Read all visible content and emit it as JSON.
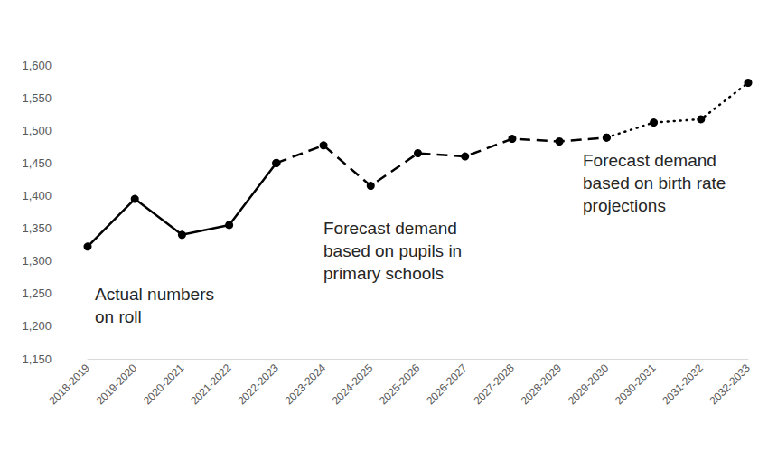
{
  "chart_data": {
    "type": "line",
    "categories": [
      "2018-2019",
      "2019-2020",
      "2020-2021",
      "2021-2022",
      "2022-2023",
      "2023-2024",
      "2024-2025",
      "2025-2026",
      "2026-2027",
      "2027-2028",
      "2028-2029",
      "2029-2030",
      "2030-2031",
      "2031-2032",
      "2032-2033"
    ],
    "series": [
      {
        "name": "Actual numbers\non roll",
        "color": "#000000",
        "line_style": "solid",
        "marker": "circle",
        "values": [
          1322,
          1395,
          1340,
          1355,
          1450,
          null,
          null,
          null,
          null,
          null,
          null,
          null,
          null,
          null,
          null
        ]
      },
      {
        "name": "Forecast demand\nbased on pupils in\nprimary schools",
        "color": "#000000",
        "line_style": "dashed",
        "marker": "circle",
        "values": [
          null,
          null,
          null,
          null,
          1450,
          1477,
          1415,
          1465,
          1460,
          1487,
          1483,
          1489,
          null,
          null,
          null
        ]
      },
      {
        "name": "Forecast demand\nbased on birth rate\nprojections",
        "color": "#000000",
        "line_style": "dotted",
        "marker": "circle",
        "values": [
          null,
          null,
          null,
          null,
          null,
          null,
          null,
          null,
          null,
          null,
          null,
          1489,
          1512,
          1517,
          1573
        ]
      }
    ],
    "ylim": [
      1150,
      1600
    ],
    "yticks": [
      {
        "value": 1150,
        "label": "1,150"
      },
      {
        "value": 1200,
        "label": "1,200"
      },
      {
        "value": 1250,
        "label": "1,250"
      },
      {
        "value": 1300,
        "label": "1,300"
      },
      {
        "value": 1350,
        "label": "1,350"
      },
      {
        "value": 1400,
        "label": "1,400"
      },
      {
        "value": 1450,
        "label": "1,450"
      },
      {
        "value": 1500,
        "label": "1,500"
      },
      {
        "value": 1550,
        "label": "1,550"
      },
      {
        "value": 1600,
        "label": "1,600"
      }
    ],
    "grid": false
  }
}
